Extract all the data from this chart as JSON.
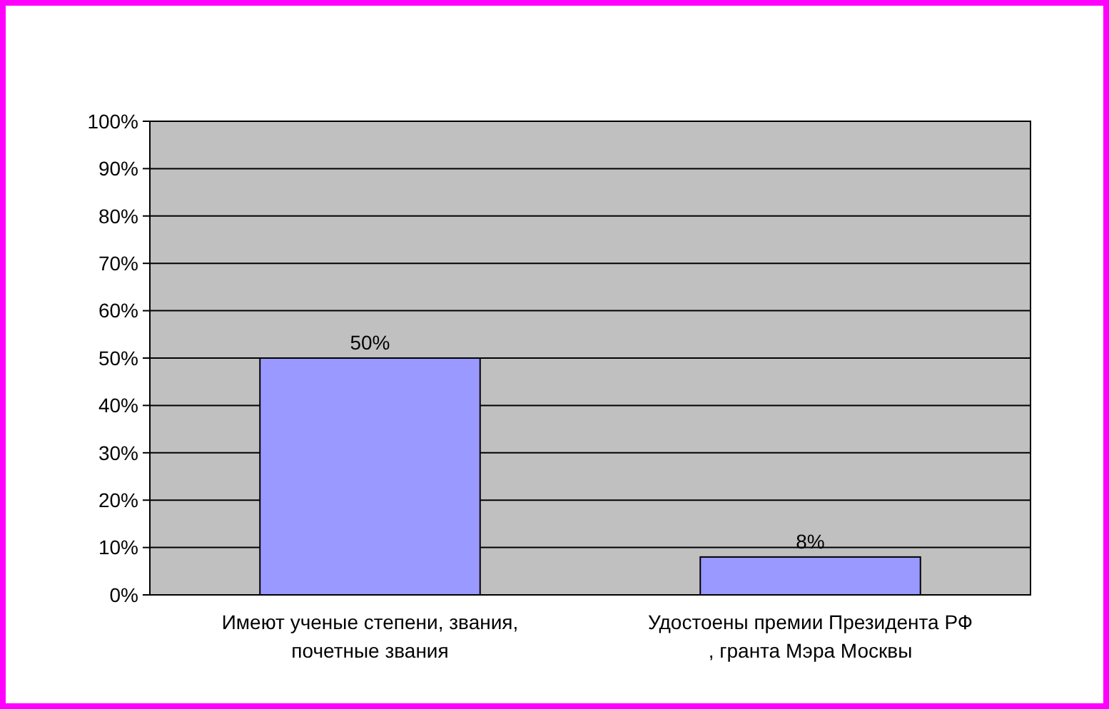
{
  "chart_data": {
    "type": "bar",
    "categories": [
      "Имеют ученые степени, звания, почетные звания",
      "Удостоены премии Президента РФ , гранта Мэра Москвы"
    ],
    "values": [
      50,
      8
    ],
    "color": "#9999ff",
    "value_labels": [
      "50%",
      "8%"
    ],
    "ylim": [
      0,
      100
    ],
    "yticks": [
      {
        "value": 0,
        "label": "0%"
      },
      {
        "value": 10,
        "label": "10%"
      },
      {
        "value": 20,
        "label": "20%"
      },
      {
        "value": 30,
        "label": "30%"
      },
      {
        "value": 40,
        "label": "40%"
      },
      {
        "value": 50,
        "label": "50%"
      },
      {
        "value": 60,
        "label": "60%"
      },
      {
        "value": 70,
        "label": "70%"
      },
      {
        "value": 80,
        "label": "80%"
      },
      {
        "value": 90,
        "label": "90%"
      },
      {
        "value": 100,
        "label": "100%"
      }
    ],
    "grid": "y"
  }
}
